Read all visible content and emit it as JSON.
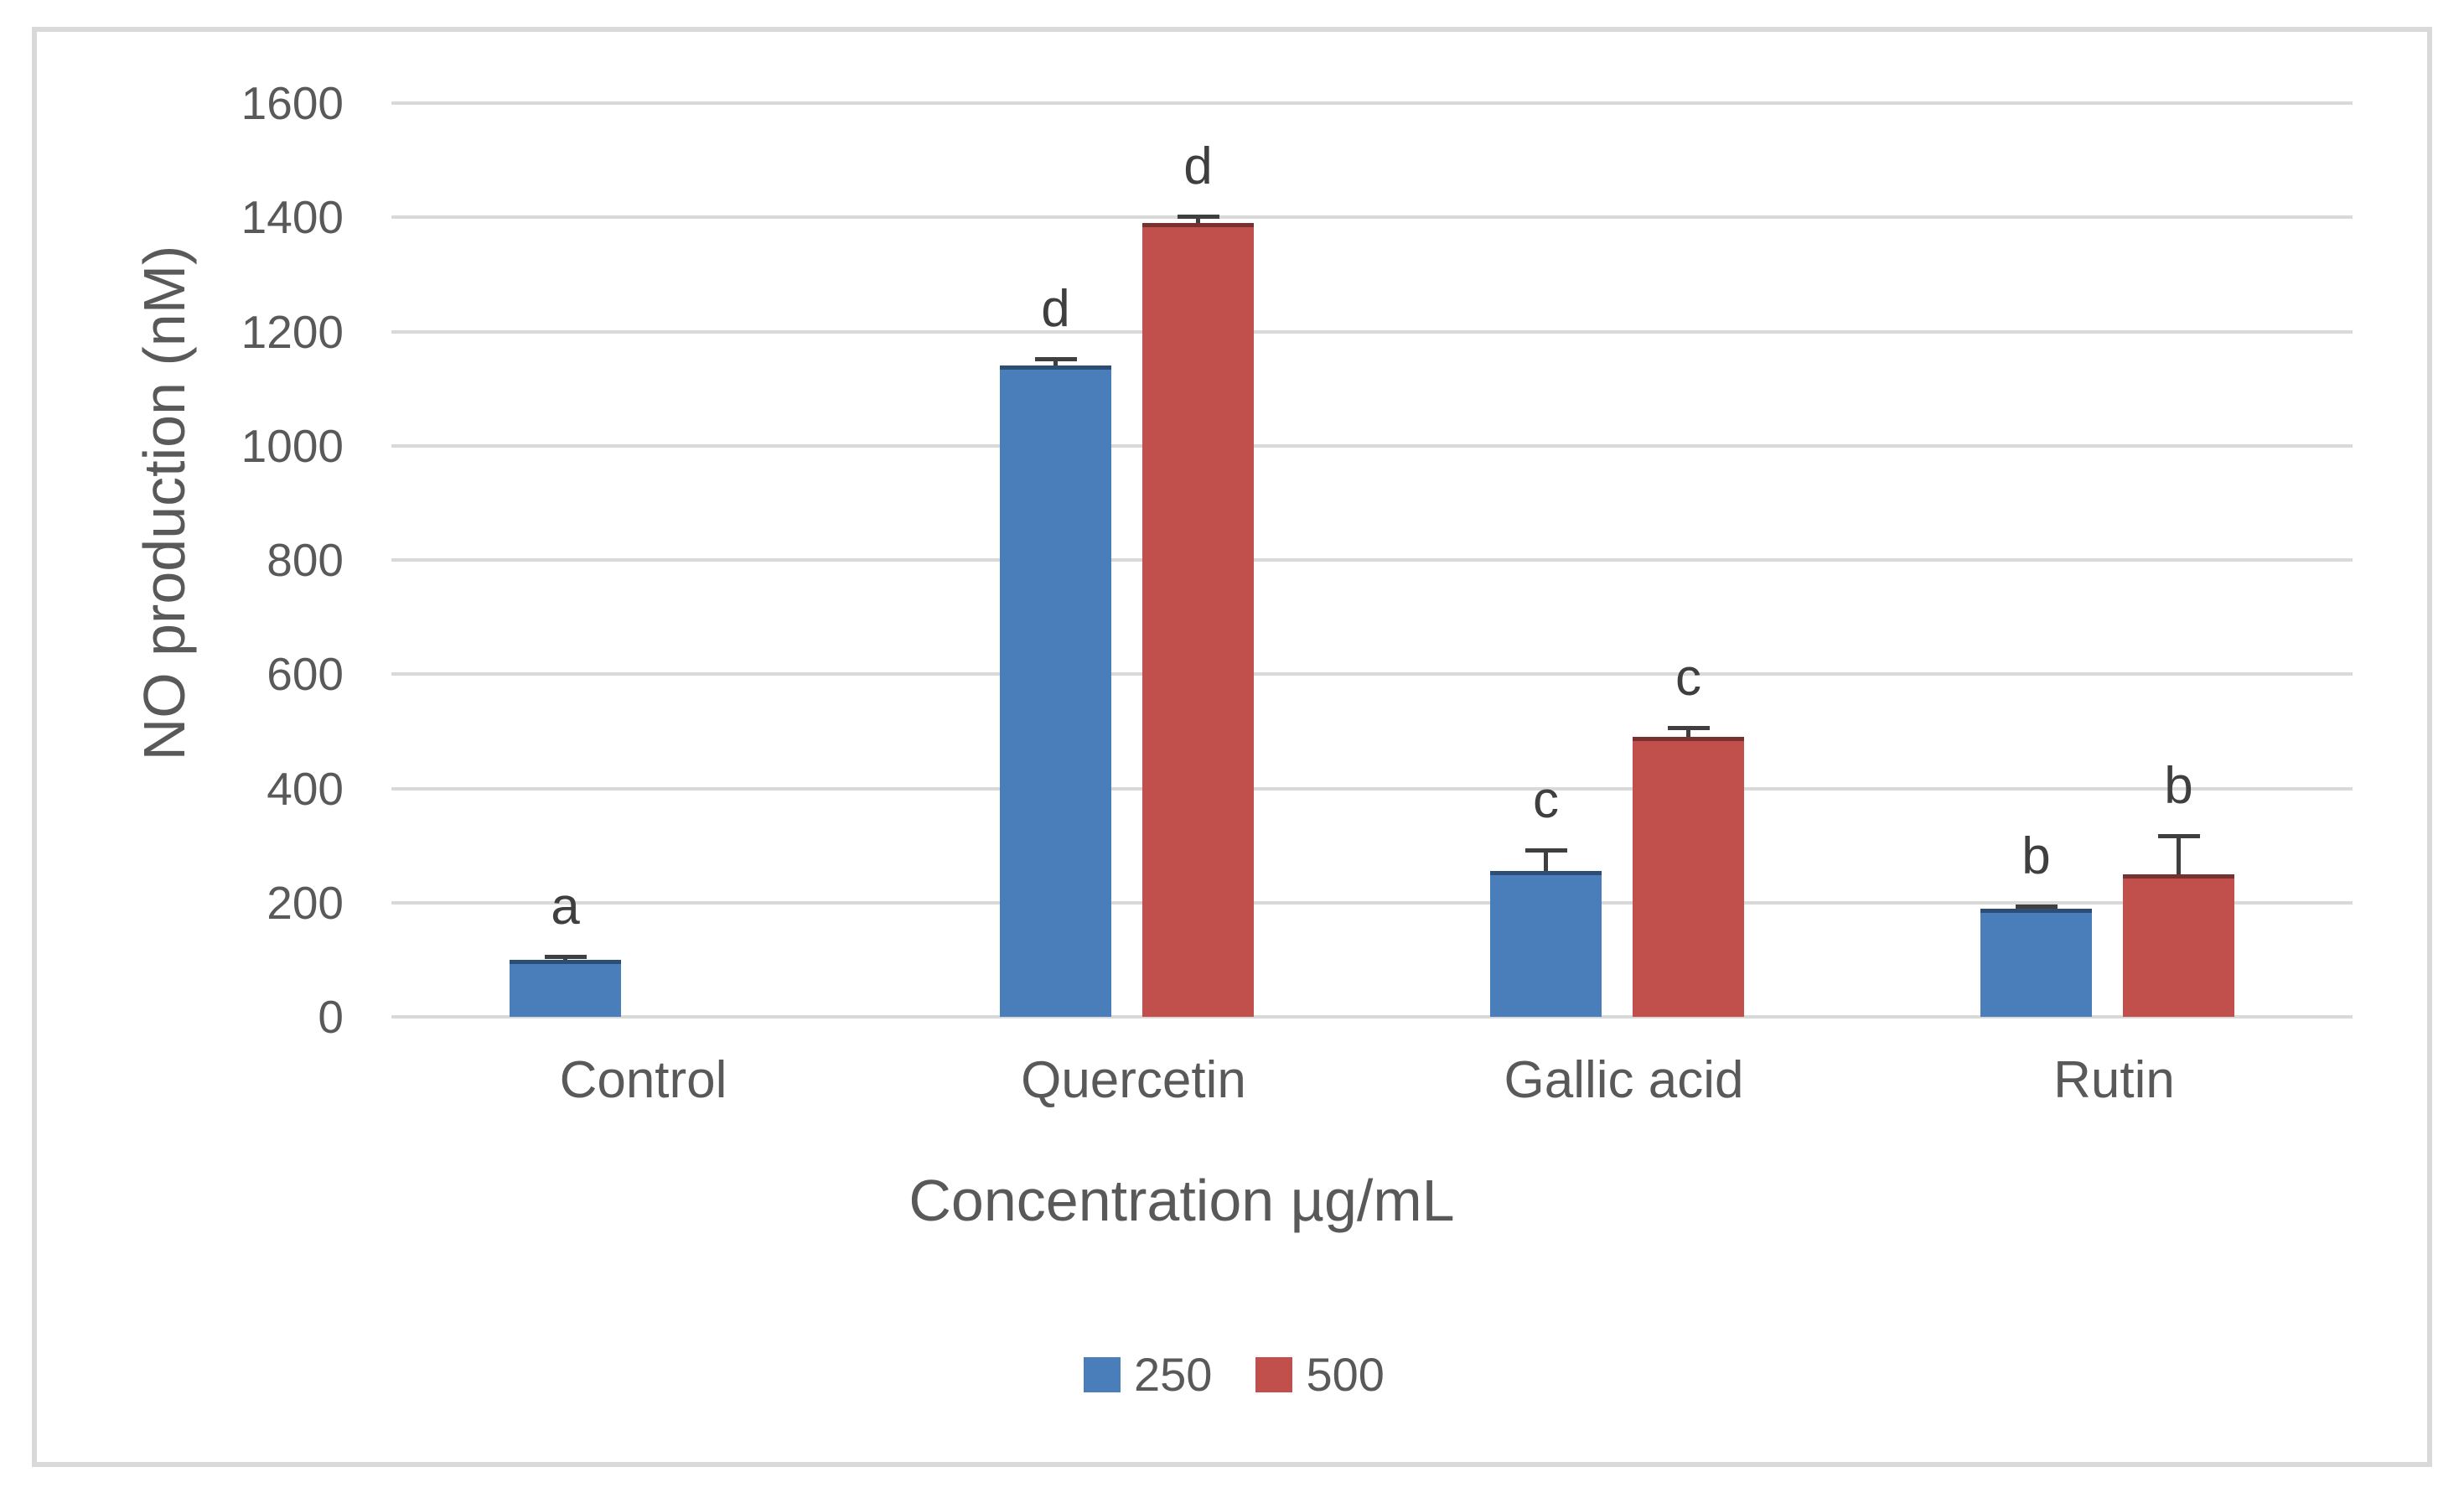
{
  "chart_data": {
    "type": "bar",
    "title": "",
    "xlabel": "Concentration µg/mL",
    "ylabel": "NO production (nM)",
    "categories": [
      "Control",
      "Quercetin",
      "Gallic acid",
      "Rutin"
    ],
    "series": [
      {
        "name": "250",
        "color": "#4A7EBB",
        "values": [
          100,
          1140,
          255,
          190
        ],
        "errors": [
          8,
          15,
          40,
          6
        ],
        "letters": [
          "a",
          "d",
          "c",
          "b"
        ]
      },
      {
        "name": "500",
        "color": "#C1504C",
        "values": [
          null,
          1390,
          490,
          250
        ],
        "errors": [
          null,
          15,
          20,
          70
        ],
        "letters": [
          null,
          "d",
          "c",
          "b"
        ]
      }
    ],
    "ylim": [
      0,
      1600
    ],
    "yticks": [
      0,
      200,
      400,
      600,
      800,
      1000,
      1200,
      1400,
      1600
    ],
    "grid": true,
    "legend_position": "bottom-center",
    "axis_text_color": "#595959",
    "gridline_color": "#D9D9D9",
    "error_bar_color": "#3F3F3F",
    "letter_color": "#3F3F3F"
  }
}
